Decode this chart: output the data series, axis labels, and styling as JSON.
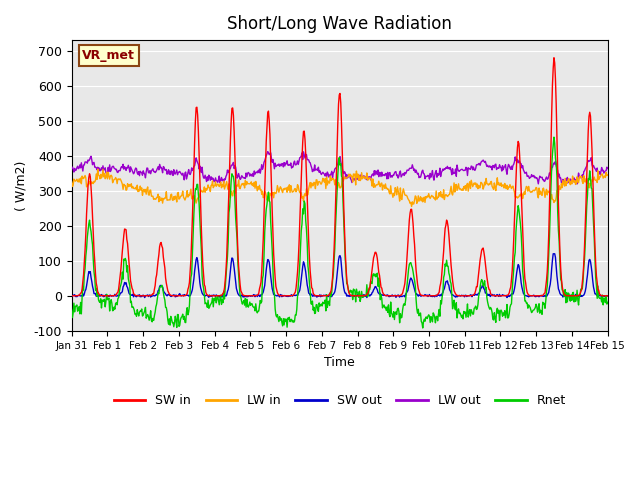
{
  "title": "Short/Long Wave Radiation",
  "xlabel": "Time",
  "ylabel": "( W/m2)",
  "annotation": "VR_met",
  "ylim": [
    -100,
    730
  ],
  "yticks": [
    -100,
    0,
    100,
    200,
    300,
    400,
    500,
    600,
    700
  ],
  "xtick_labels": [
    "Jan 31",
    "Feb 1",
    "Feb 2",
    "Feb 3",
    "Feb 4",
    "Feb 5",
    "Feb 6",
    "Feb 7",
    "Feb 8",
    "Feb 9",
    "Feb 10",
    "Feb 11",
    "Feb 12",
    "Feb 13",
    "Feb 14",
    "Feb 15"
  ],
  "colors": {
    "SW_in": "#ff0000",
    "LW_in": "#ffa500",
    "SW_out": "#0000cc",
    "LW_out": "#9900cc",
    "Rnet": "#00cc00"
  },
  "legend_labels": [
    "SW in",
    "LW in",
    "SW out",
    "LW out",
    "Rnet"
  ],
  "bg_color": "#e8e8e8",
  "line_width": 1.0,
  "n_days": 15,
  "points_per_day": 48
}
